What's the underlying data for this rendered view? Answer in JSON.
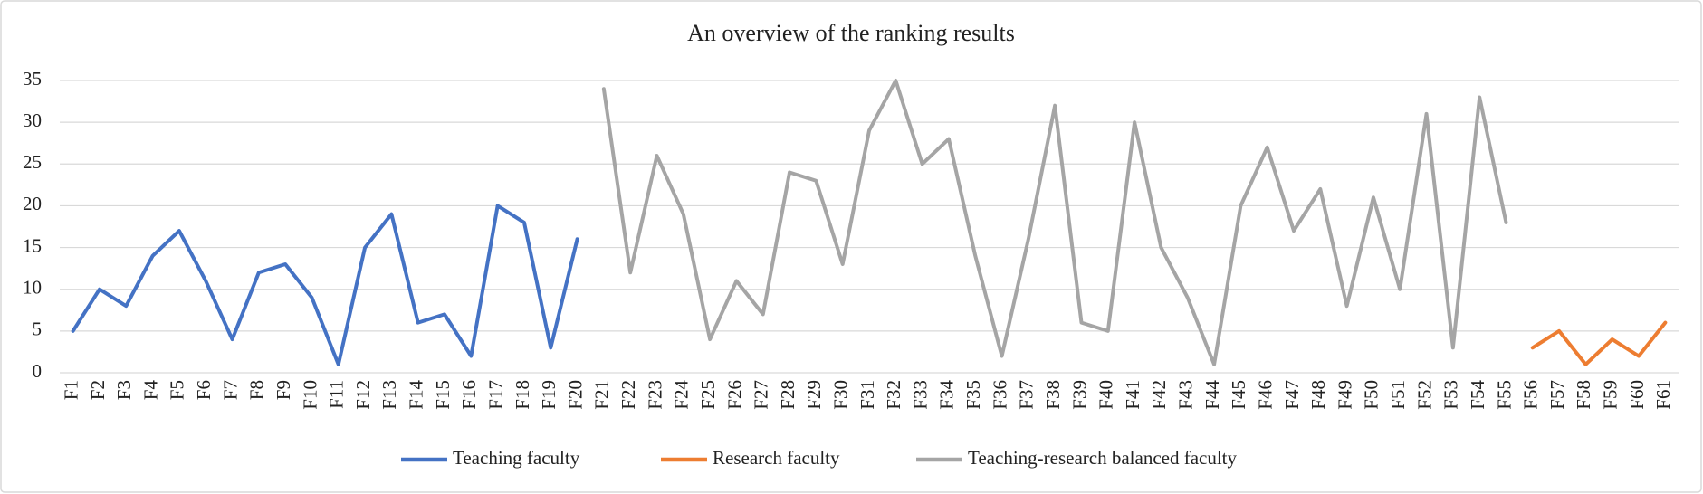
{
  "chart_data": {
    "type": "line",
    "title": "An overview of the ranking results",
    "categories": [
      "F1",
      "F2",
      "F3",
      "F4",
      "F5",
      "F6",
      "F7",
      "F8",
      "F9",
      "F10",
      "F11",
      "F12",
      "F13",
      "F14",
      "F15",
      "F16",
      "F17",
      "F18",
      "F19",
      "F20",
      "F21",
      "F22",
      "F23",
      "F24",
      "F25",
      "F26",
      "F27",
      "F28",
      "F29",
      "F30",
      "F31",
      "F32",
      "F33",
      "F34",
      "F35",
      "F36",
      "F37",
      "F38",
      "F39",
      "F40",
      "F41",
      "F42",
      "F43",
      "F44",
      "F45",
      "F46",
      "F47",
      "F48",
      "F49",
      "F50",
      "F51",
      "F52",
      "F53",
      "F54",
      "F55",
      "F56",
      "F57",
      "F58",
      "F59",
      "F60",
      "F61"
    ],
    "series": [
      {
        "name": "Teaching faculty",
        "color": "#4472c4",
        "values": [
          5,
          10,
          8,
          14,
          17,
          11,
          4,
          12,
          13,
          9,
          1,
          15,
          19,
          6,
          7,
          2,
          20,
          18,
          3,
          16,
          null,
          null,
          null,
          null,
          null,
          null,
          null,
          null,
          null,
          null,
          null,
          null,
          null,
          null,
          null,
          null,
          null,
          null,
          null,
          null,
          null,
          null,
          null,
          null,
          null,
          null,
          null,
          null,
          null,
          null,
          null,
          null,
          null,
          null,
          null,
          null,
          null,
          null,
          null,
          null,
          null
        ]
      },
      {
        "name": "Research faculty",
        "color": "#ed7d31",
        "values": [
          null,
          null,
          null,
          null,
          null,
          null,
          null,
          null,
          null,
          null,
          null,
          null,
          null,
          null,
          null,
          null,
          null,
          null,
          null,
          null,
          null,
          null,
          null,
          null,
          null,
          null,
          null,
          null,
          null,
          null,
          null,
          null,
          null,
          null,
          null,
          null,
          null,
          null,
          null,
          null,
          null,
          null,
          null,
          null,
          null,
          null,
          null,
          null,
          null,
          null,
          null,
          null,
          null,
          null,
          null,
          3,
          5,
          1,
          4,
          2,
          6
        ]
      },
      {
        "name": "Teaching-research balanced faculty",
        "color": "#a5a5a5",
        "values": [
          null,
          null,
          null,
          null,
          null,
          null,
          null,
          null,
          null,
          null,
          null,
          null,
          null,
          null,
          null,
          null,
          null,
          null,
          null,
          null,
          34,
          12,
          26,
          19,
          4,
          11,
          7,
          24,
          23,
          13,
          29,
          35,
          25,
          28,
          14,
          2,
          16,
          32,
          6,
          5,
          30,
          15,
          9,
          1,
          20,
          27,
          17,
          22,
          8,
          21,
          10,
          31,
          3,
          33,
          18,
          null,
          null,
          null,
          null,
          null,
          null
        ]
      }
    ],
    "ylim": [
      0,
      35
    ],
    "yticks": [
      0,
      5,
      10,
      15,
      20,
      25,
      30,
      35
    ],
    "grid": true,
    "legend": "bottom"
  }
}
